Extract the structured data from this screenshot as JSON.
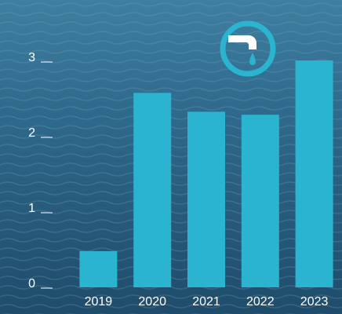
{
  "chart_data": {
    "type": "bar",
    "categories": [
      "2019",
      "2020",
      "2021",
      "2022",
      "2023"
    ],
    "values": [
      0.48,
      2.58,
      2.33,
      2.29,
      3.01
    ],
    "color": "#2ab4cf",
    "ylim": [
      0,
      3.5
    ],
    "yticks": [
      0,
      1,
      2,
      3
    ]
  }
}
